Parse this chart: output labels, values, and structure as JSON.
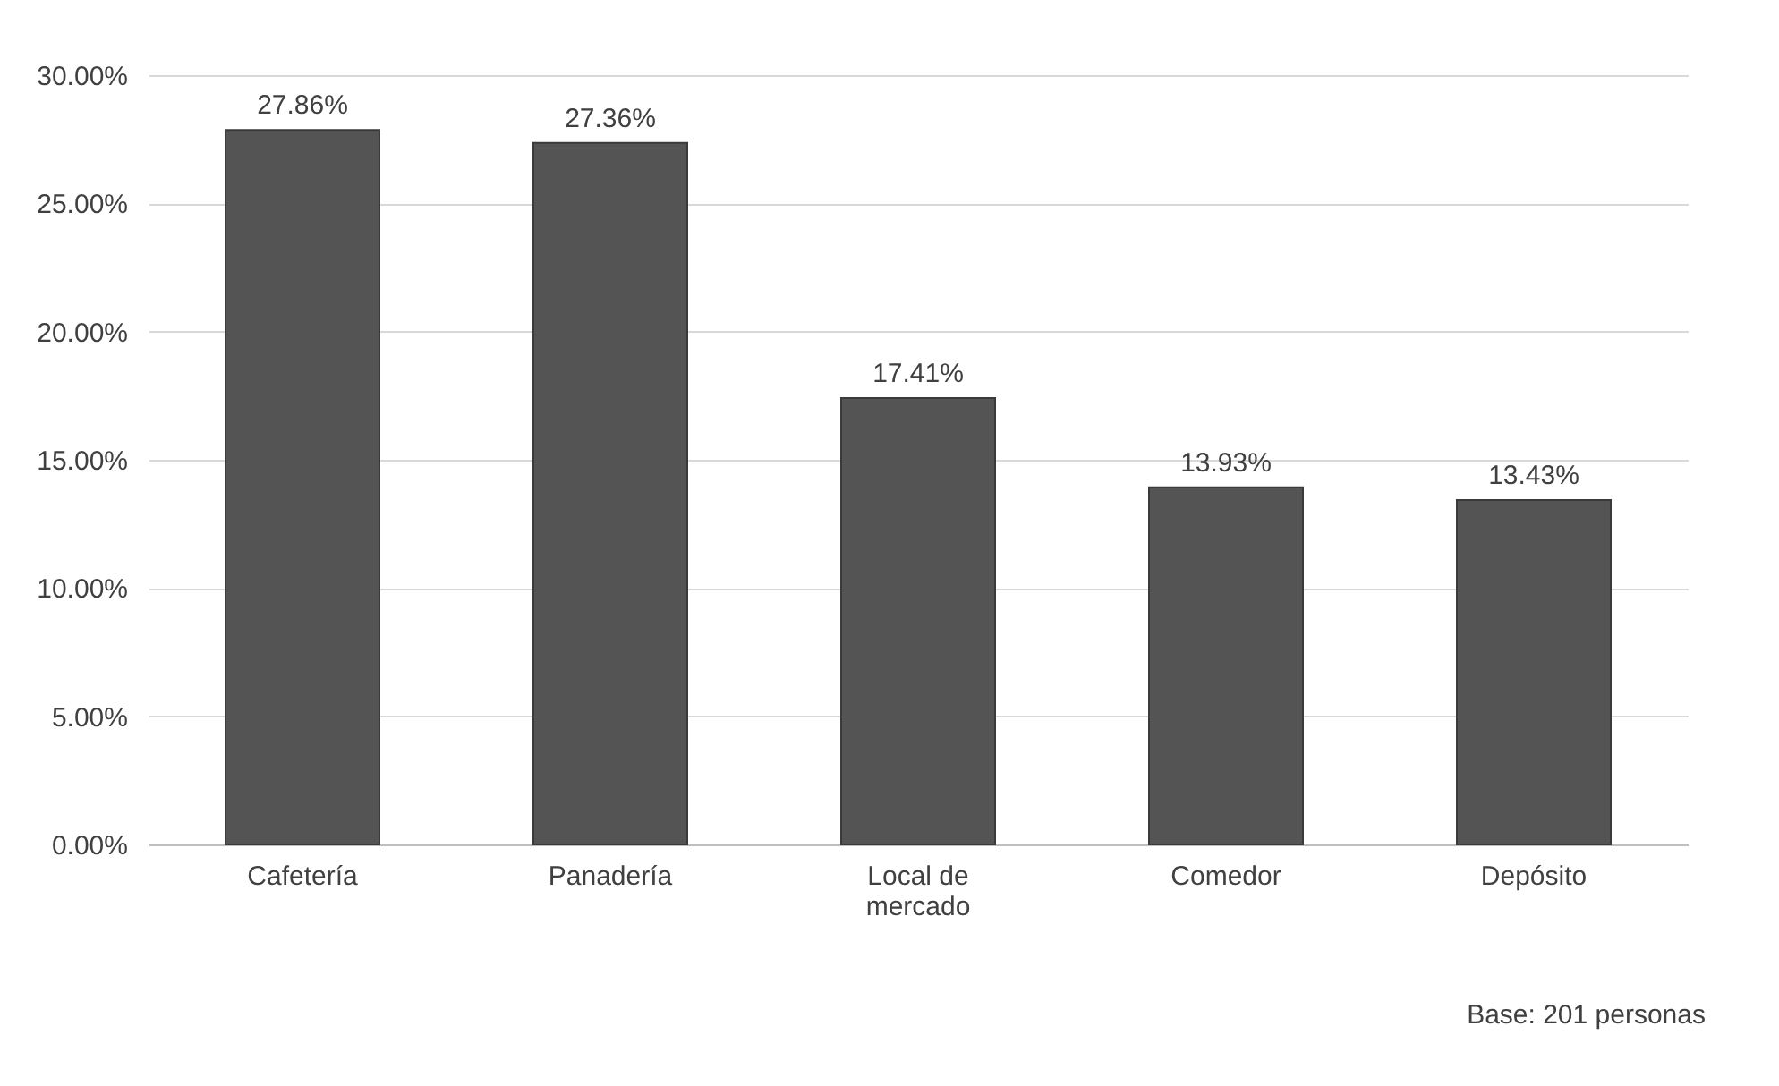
{
  "chart_data": {
    "type": "bar",
    "categories": [
      "Cafetería",
      "Panadería",
      "Local de mercado",
      "Comedor",
      "Depósito"
    ],
    "values": [
      27.86,
      27.36,
      17.41,
      13.93,
      13.43
    ],
    "value_labels": [
      "27.86%",
      "27.36%",
      "17.41%",
      "13.93%",
      "13.43%"
    ],
    "color": "#545454",
    "ylim": [
      0,
      30
    ],
    "yticks": [
      {
        "value": 0,
        "label": "0.00%"
      },
      {
        "value": 5,
        "label": "5.00%"
      },
      {
        "value": 10,
        "label": "10.00%"
      },
      {
        "value": 15,
        "label": "15.00%"
      },
      {
        "value": 20,
        "label": "20.00%"
      },
      {
        "value": 25,
        "label": "25.00%"
      },
      {
        "value": 30,
        "label": "30.00%"
      }
    ],
    "grid": "y",
    "annotations": [
      "Base: 201 personas"
    ]
  }
}
